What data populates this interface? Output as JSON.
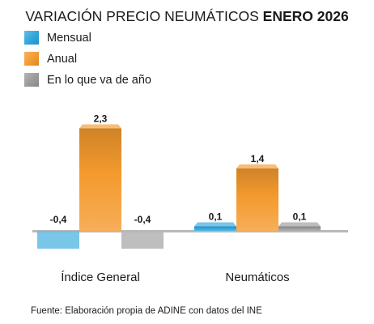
{
  "title": {
    "regular": "VARIACIÓN PRECIO NEUMÁTICOS",
    "bold": "ENERO 2026"
  },
  "legend": [
    {
      "label": "Mensual",
      "color": "#2fa6dc"
    },
    {
      "label": "Anual",
      "color": "#f49a2e"
    },
    {
      "label": "En lo que va de año",
      "color": "#9a9a9a"
    }
  ],
  "source": "Fuente: Elaboración propia de ADINE con datos del INE",
  "chart_data": {
    "type": "bar",
    "categories": [
      "Índice General",
      "Neumáticos"
    ],
    "series": [
      {
        "name": "Mensual",
        "color": "#2fa6dc",
        "values": [
          -0.4,
          0.1
        ],
        "labels": [
          "-0,4",
          "0,1"
        ]
      },
      {
        "name": "Anual",
        "color": "#f49a2e",
        "values": [
          2.3,
          1.4
        ],
        "labels": [
          "2,3",
          "1,4"
        ]
      },
      {
        "name": "En lo que va de año",
        "color": "#9a9a9a",
        "values": [
          -0.4,
          0.1
        ],
        "labels": [
          "-0,4",
          "0,1"
        ]
      }
    ],
    "title": "VARIACIÓN PRECIO NEUMÁTICOS ENERO 2026",
    "xlabel": "",
    "ylabel": "",
    "grid": false,
    "legend_position": "top-left"
  }
}
